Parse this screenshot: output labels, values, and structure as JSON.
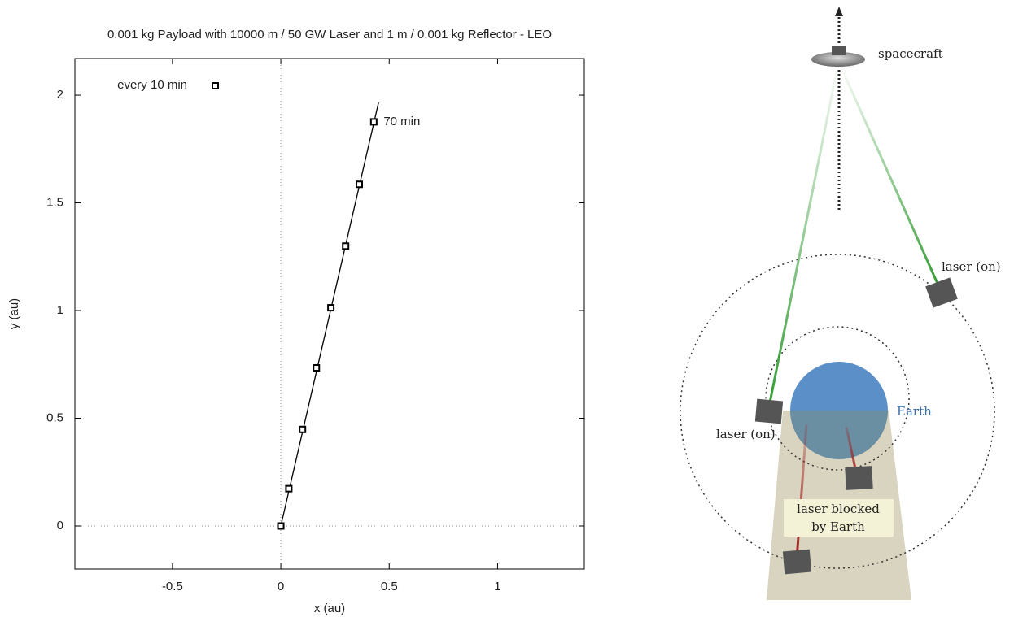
{
  "chart_data": {
    "type": "scatter",
    "title": "0.001 kg Payload with 10000 m / 50 GW Laser and 1 m / 0.001 kg Reflector - LEO",
    "xlabel": "x (au)",
    "ylabel": "y (au)",
    "xlim": [
      -0.95,
      1.4
    ],
    "ylim": [
      -0.2,
      2.17
    ],
    "xticks": [
      -0.5,
      0,
      0.5,
      1
    ],
    "yticks": [
      0,
      0.5,
      1,
      1.5,
      2
    ],
    "zeroaxis": true,
    "series": [
      {
        "name": "every 10 min",
        "color": "#000000",
        "x": [
          0,
          0.037,
          0.1,
          0.164,
          0.231,
          0.299,
          0.362,
          0.429
        ],
        "y": [
          0,
          0.173,
          0.448,
          0.734,
          1.013,
          1.299,
          1.586,
          1.876
        ]
      }
    ],
    "trajectory": {
      "color": "#000000",
      "x": [
        0,
        0.451
      ],
      "y": [
        0,
        1.966
      ]
    },
    "annotation": "70 min"
  },
  "diagram": {
    "spacecraft": "spacecraft",
    "laser_on_right": "laser (on)",
    "laser_on_left": "laser (on)",
    "earth": "Earth",
    "blocked": [
      "laser blocked",
      "by Earth"
    ]
  }
}
